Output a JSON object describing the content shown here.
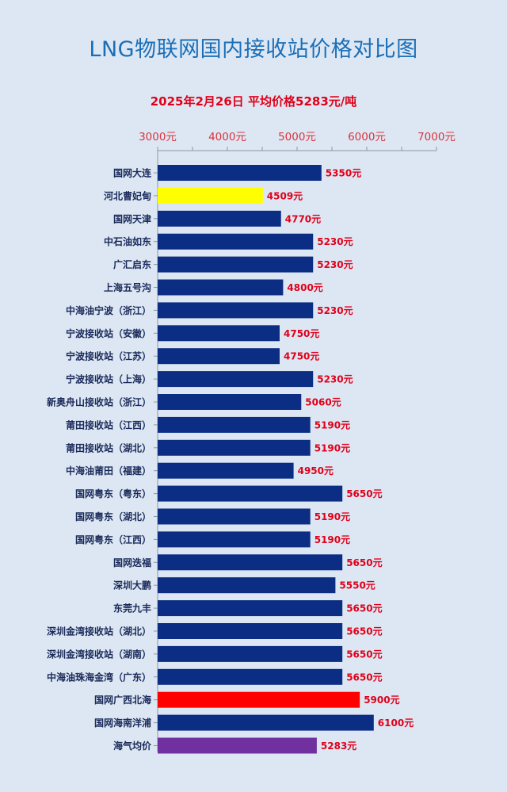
{
  "chart_data": {
    "type": "bar",
    "orientation": "horizontal",
    "title": "LNG物联网国内接收站价格对比图",
    "subtitle": "2025年2月26日 平均价格5283元/吨",
    "xlim": [
      3000,
      7000
    ],
    "x_ticks": [
      3000,
      4000,
      5000,
      6000,
      7000
    ],
    "tick_labels": [
      "3000元",
      "4000元",
      "5000元",
      "6000元",
      "7000元"
    ],
    "value_suffix": "元",
    "categories": [
      "国网大连",
      "河北曹妃甸",
      "国网天津",
      "中石油如东",
      "广汇启东",
      "上海五号沟",
      "中海油宁波（浙江）",
      "宁波接收站（安徽）",
      "宁波接收站（江苏）",
      "宁波接收站（上海）",
      "新奥舟山接收站（浙江）",
      "莆田接收站（江西）",
      "莆田接收站（湖北）",
      "中海油莆田（福建）",
      "国网粤东（粤东）",
      "国网粤东（湖北）",
      "国网粤东（江西）",
      "国网迭福",
      "深圳大鹏",
      "东莞九丰",
      "深圳金湾接收站（湖北）",
      "深圳金湾接收站（湖南）",
      "中海油珠海金湾（广东）",
      "国网广西北海",
      "国网海南洋浦",
      "海气均价"
    ],
    "values": [
      5350,
      4509,
      4770,
      5230,
      5230,
      4800,
      5230,
      4750,
      4750,
      5230,
      5060,
      5190,
      5190,
      4950,
      5650,
      5190,
      5190,
      5650,
      5550,
      5650,
      5650,
      5650,
      5650,
      5900,
      6100,
      5283
    ],
    "colors": {
      "default": "#0c2d84",
      "河北曹妃甸": "#ffff00",
      "国网广西北海": "#ff0000",
      "海气均价": "#7030a0"
    },
    "grid": false,
    "legend": "none"
  }
}
